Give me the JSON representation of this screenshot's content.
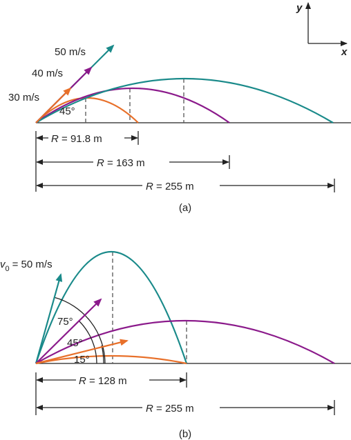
{
  "axes": {
    "y": "y",
    "x": "x"
  },
  "panel_a": {
    "speeds": [
      "30 m/s",
      "40 m/s",
      "50 m/s"
    ],
    "angle": "45°",
    "ranges": [
      {
        "variable": "R",
        "text": "= 91.8 m"
      },
      {
        "variable": "R",
        "text": "= 163 m"
      },
      {
        "variable": "R",
        "text": "= 255 m"
      }
    ],
    "caption": "(a)"
  },
  "panel_b": {
    "speed": {
      "variable": "v",
      "subscript": "0",
      "text": "= 50 m/s"
    },
    "angles": [
      "75°",
      "45°",
      "15°"
    ],
    "ranges": [
      {
        "variable": "R",
        "text": "= 128 m"
      },
      {
        "variable": "R",
        "text": "= 255 m"
      }
    ],
    "caption": "(b)"
  }
}
